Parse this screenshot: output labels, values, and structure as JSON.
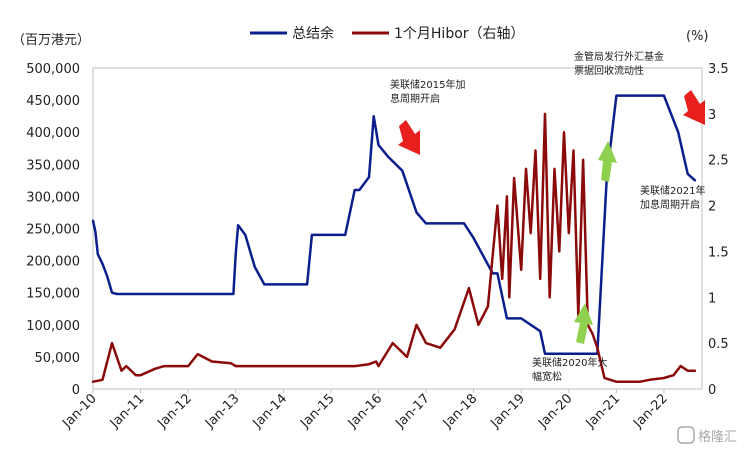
{
  "chart_data": {
    "type": "line",
    "left_unit": "（百万港元）",
    "right_unit": "(%)",
    "x_ticks": [
      "Jan-10",
      "Jan-11",
      "Jan-12",
      "Jan-13",
      "Jan-14",
      "Jan-15",
      "Jan-16",
      "Jan-17",
      "Jan-18",
      "Jan-19",
      "Jan-20",
      "Jan-21",
      "Jan-22"
    ],
    "left_axis": {
      "min": 0,
      "max": 500000,
      "ticks": [
        "0",
        "50,000",
        "100,000",
        "150,000",
        "200,000",
        "250,000",
        "300,000",
        "350,000",
        "400,000",
        "450,000",
        "500,000"
      ]
    },
    "right_axis": {
      "min": 0,
      "max": 3.5,
      "ticks": [
        "0",
        "0.5",
        "1",
        "1.5",
        "2",
        "2.5",
        "3",
        "3.5"
      ]
    },
    "legend": [
      {
        "name": "总结余",
        "color": "#0b1f8c"
      },
      {
        "name": "1个月Hibor（右轴）",
        "color": "#8b0a0a"
      }
    ],
    "series": [
      {
        "name": "总结余",
        "axis": "left",
        "color": "#0b1f8c",
        "x": [
          2010.0,
          2010.05,
          2010.1,
          2010.2,
          2010.3,
          2010.4,
          2010.5,
          2011.0,
          2011.5,
          2012.0,
          2012.5,
          2012.95,
          2013.0,
          2013.05,
          2013.2,
          2013.4,
          2013.6,
          2014.0,
          2014.5,
          2014.6,
          2015.0,
          2015.3,
          2015.5,
          2015.6,
          2015.8,
          2015.9,
          2016.0,
          2016.2,
          2016.5,
          2016.8,
          2017.0,
          2017.5,
          2017.8,
          2018.0,
          2018.4,
          2018.5,
          2018.7,
          2019.0,
          2019.4,
          2019.5,
          2019.8,
          2020.0,
          2020.5,
          2020.6,
          2020.8,
          2021.0,
          2021.2,
          2021.5,
          2022.0,
          2022.3,
          2022.5,
          2022.65
        ],
        "y": [
          262000,
          245000,
          210000,
          195000,
          175000,
          150000,
          148000,
          148000,
          148000,
          148000,
          148000,
          148000,
          210000,
          255000,
          240000,
          190000,
          163000,
          163000,
          163000,
          240000,
          240000,
          240000,
          310000,
          310000,
          330000,
          425000,
          380000,
          362000,
          340000,
          275000,
          258000,
          258000,
          258000,
          235000,
          180000,
          180000,
          110000,
          110000,
          90000,
          55000,
          55000,
          55000,
          55000,
          55000,
          330000,
          457000,
          457000,
          457000,
          457000,
          400000,
          335000,
          325000
        ]
      },
      {
        "name": "1个月Hibor（右轴）",
        "axis": "right",
        "color": "#8b0a0a",
        "x": [
          2010.0,
          2010.2,
          2010.4,
          2010.6,
          2010.7,
          2010.9,
          2011.0,
          2011.3,
          2011.5,
          2012.0,
          2012.2,
          2012.5,
          2012.9,
          2013.0,
          2013.5,
          2014.0,
          2014.5,
          2015.0,
          2015.5,
          2015.8,
          2015.95,
          2016.0,
          2016.3,
          2016.6,
          2016.8,
          2017.0,
          2017.3,
          2017.6,
          2017.9,
          2018.1,
          2018.3,
          2018.5,
          2018.6,
          2018.7,
          2018.75,
          2018.85,
          2019.0,
          2019.1,
          2019.2,
          2019.3,
          2019.4,
          2019.5,
          2019.6,
          2019.7,
          2019.8,
          2019.9,
          2020.0,
          2020.1,
          2020.2,
          2020.3,
          2020.4,
          2020.5,
          2020.6,
          2020.75,
          2021.0,
          2021.5,
          2021.7,
          2022.0,
          2022.2,
          2022.35,
          2022.5,
          2022.65
        ],
        "y": [
          0.08,
          0.1,
          0.5,
          0.2,
          0.25,
          0.15,
          0.15,
          0.22,
          0.25,
          0.25,
          0.38,
          0.3,
          0.28,
          0.25,
          0.25,
          0.25,
          0.25,
          0.25,
          0.25,
          0.27,
          0.3,
          0.25,
          0.5,
          0.35,
          0.7,
          0.5,
          0.45,
          0.65,
          1.1,
          0.7,
          0.9,
          2.0,
          1.2,
          2.1,
          1.0,
          2.3,
          1.3,
          2.4,
          1.7,
          2.6,
          1.2,
          3.0,
          1.0,
          2.4,
          1.5,
          2.8,
          1.7,
          2.6,
          0.8,
          2.5,
          0.7,
          0.6,
          0.45,
          0.12,
          0.08,
          0.08,
          0.1,
          0.12,
          0.15,
          0.25,
          0.2,
          0.2
        ]
      }
    ],
    "annotations": [
      {
        "lines": [
          "美联储2015年加",
          "息周期开启"
        ]
      },
      {
        "lines": [
          "金管局发行外汇基金",
          "票据回收流动性"
        ]
      },
      {
        "lines": [
          "美联储2021年",
          "加息周期开启"
        ]
      },
      {
        "lines": [
          "美联储2020年大",
          "幅宽松"
        ]
      }
    ],
    "arrow_colors": {
      "down": "#e8201d",
      "up": "#8fd14f"
    },
    "grid": false,
    "watermark": "格隆汇"
  }
}
